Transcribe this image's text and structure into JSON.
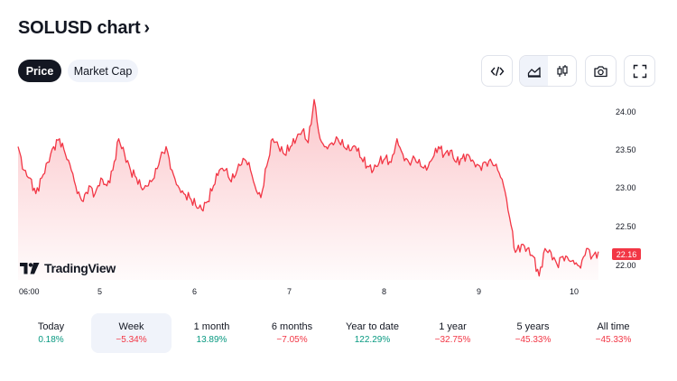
{
  "header": {
    "title": "SOLUSD chart",
    "chevron": "›"
  },
  "tabs": [
    {
      "label": "Price",
      "active": true
    },
    {
      "label": "Market Cap",
      "active": false
    }
  ],
  "toolbar": [
    {
      "icon": "embed-code-icon"
    },
    {
      "icon": "area-chart-icon",
      "selected": true
    },
    {
      "icon": "candlestick-icon"
    },
    {
      "icon": "camera-icon"
    },
    {
      "icon": "fullscreen-icon"
    }
  ],
  "logo": {
    "text": "TradingView"
  },
  "colors": {
    "line": "#f23645",
    "fill_top": "#f23645",
    "positive": "#089981",
    "negative": "#f23645"
  },
  "chart_data": {
    "type": "area",
    "y_ticks": [
      "24.00",
      "23.50",
      "23.00",
      "22.50",
      "22.00"
    ],
    "x_ticks": [
      "06:00",
      "5",
      "6",
      "7",
      "8",
      "9",
      "10"
    ],
    "last_price": "22.16",
    "ylim": [
      21.8,
      24.15
    ],
    "x_domain": [
      0,
      100
    ],
    "points": [
      [
        0,
        23.5
      ],
      [
        1,
        23.2
      ],
      [
        2,
        23.1
      ],
      [
        3,
        22.9
      ],
      [
        4,
        23.1
      ],
      [
        5,
        23.3
      ],
      [
        6,
        23.5
      ],
      [
        7,
        23.6
      ],
      [
        8,
        23.4
      ],
      [
        9,
        23.2
      ],
      [
        10,
        22.9
      ],
      [
        11,
        22.8
      ],
      [
        12,
        23.0
      ],
      [
        13,
        22.9
      ],
      [
        14,
        23.1
      ],
      [
        15,
        23.0
      ],
      [
        16,
        23.2
      ],
      [
        17,
        23.6
      ],
      [
        18,
        23.4
      ],
      [
        19,
        23.2
      ],
      [
        20,
        23.1
      ],
      [
        21,
        22.95
      ],
      [
        22,
        23.0
      ],
      [
        23,
        23.1
      ],
      [
        24,
        23.35
      ],
      [
        25,
        23.5
      ],
      [
        26,
        23.2
      ],
      [
        27,
        23.0
      ],
      [
        28,
        22.9
      ],
      [
        29,
        22.85
      ],
      [
        30,
        22.75
      ],
      [
        31,
        22.7
      ],
      [
        32,
        22.8
      ],
      [
        33,
        23.0
      ],
      [
        34,
        23.2
      ],
      [
        35,
        23.2
      ],
      [
        36,
        23.05
      ],
      [
        37,
        23.2
      ],
      [
        38,
        23.35
      ],
      [
        39,
        23.3
      ],
      [
        40,
        23.0
      ],
      [
        41,
        22.85
      ],
      [
        42,
        23.25
      ],
      [
        43,
        23.6
      ],
      [
        44,
        23.5
      ],
      [
        45,
        23.4
      ],
      [
        46,
        23.5
      ],
      [
        47,
        23.6
      ],
      [
        48,
        23.7
      ],
      [
        49,
        23.55
      ],
      [
        50,
        24.1
      ],
      [
        51,
        23.6
      ],
      [
        52,
        23.5
      ],
      [
        53,
        23.55
      ],
      [
        54,
        23.6
      ],
      [
        55,
        23.5
      ],
      [
        56,
        23.45
      ],
      [
        57,
        23.5
      ],
      [
        58,
        23.35
      ],
      [
        59,
        23.25
      ],
      [
        60,
        23.2
      ],
      [
        61,
        23.3
      ],
      [
        62,
        23.35
      ],
      [
        63,
        23.3
      ],
      [
        64,
        23.6
      ],
      [
        65,
        23.4
      ],
      [
        66,
        23.3
      ],
      [
        67,
        23.35
      ],
      [
        68,
        23.25
      ],
      [
        69,
        23.2
      ],
      [
        70,
        23.35
      ],
      [
        71,
        23.5
      ],
      [
        72,
        23.4
      ],
      [
        73,
        23.45
      ],
      [
        74,
        23.3
      ],
      [
        75,
        23.35
      ],
      [
        76,
        23.4
      ],
      [
        77,
        23.3
      ],
      [
        78,
        23.25
      ],
      [
        79,
        23.3
      ],
      [
        80,
        23.3
      ],
      [
        81,
        23.2
      ],
      [
        82,
        23.0
      ],
      [
        83,
        22.6
      ],
      [
        84,
        22.15
      ],
      [
        85,
        22.25
      ],
      [
        86,
        22.2
      ],
      [
        87,
        22.1
      ],
      [
        88,
        21.85
      ],
      [
        89,
        22.2
      ],
      [
        90,
        22.15
      ],
      [
        91,
        22.0
      ],
      [
        92,
        22.1
      ],
      [
        93,
        22.05
      ],
      [
        94,
        22.0
      ],
      [
        95,
        21.95
      ],
      [
        96,
        22.2
      ],
      [
        97,
        22.1
      ],
      [
        98,
        22.16
      ]
    ]
  },
  "periods": [
    {
      "label": "Today",
      "value": "0.18%",
      "trend": "positive",
      "selected": false
    },
    {
      "label": "Week",
      "value": "−5.34%",
      "trend": "negative",
      "selected": true
    },
    {
      "label": "1 month",
      "value": "13.89%",
      "trend": "positive",
      "selected": false
    },
    {
      "label": "6 months",
      "value": "−7.05%",
      "trend": "negative",
      "selected": false
    },
    {
      "label": "Year to date",
      "value": "122.29%",
      "trend": "positive",
      "selected": false
    },
    {
      "label": "1 year",
      "value": "−32.75%",
      "trend": "negative",
      "selected": false
    },
    {
      "label": "5 years",
      "value": "−45.33%",
      "trend": "negative",
      "selected": false
    },
    {
      "label": "All time",
      "value": "−45.33%",
      "trend": "negative",
      "selected": false
    }
  ]
}
